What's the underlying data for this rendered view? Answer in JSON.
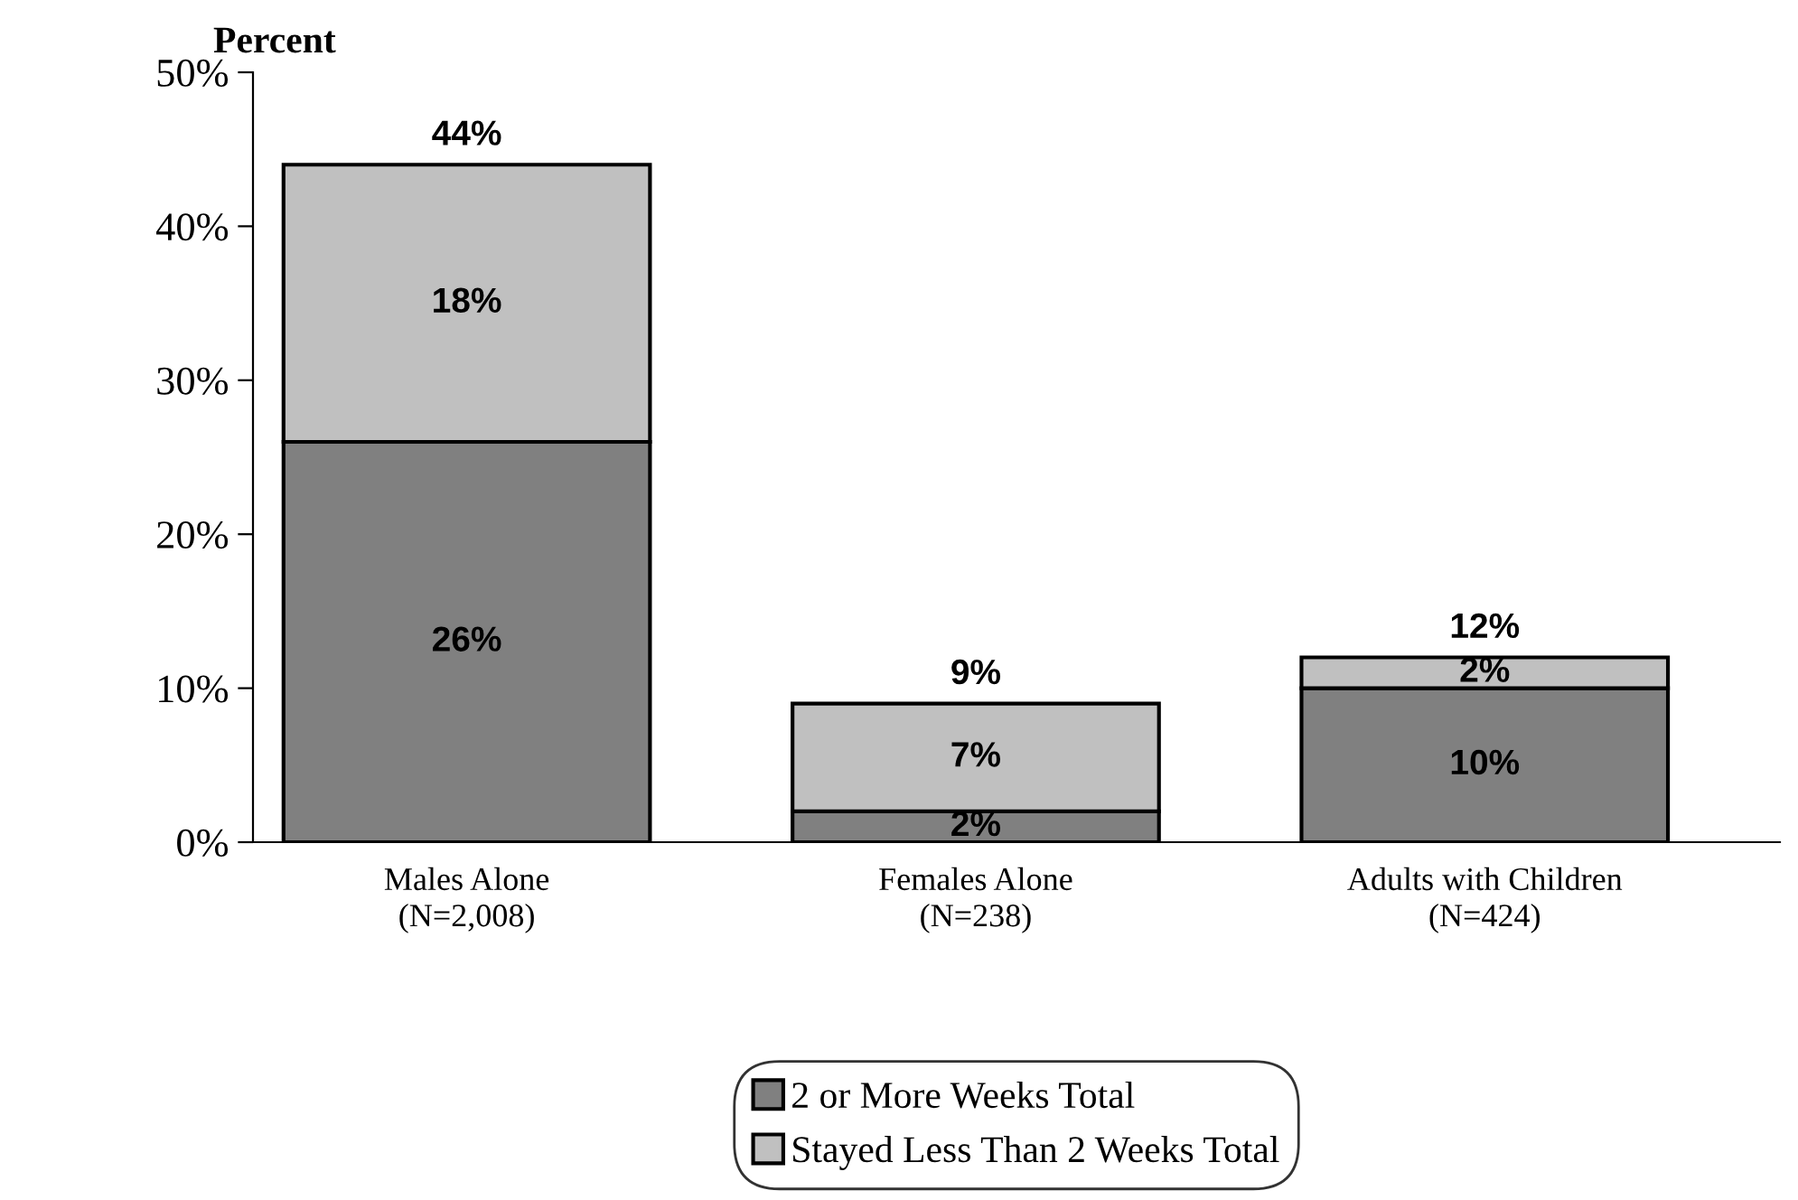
{
  "chart_data": {
    "type": "bar",
    "stacked": true,
    "ylabel": "Percent",
    "categories": [
      "Males Alone\n(N=2,008)",
      "Females Alone\n(N=238)",
      "Adults with Children\n(N=424)"
    ],
    "series": [
      {
        "name": "2 or More Weeks Total",
        "color": "#808080",
        "values": [
          26,
          2,
          10
        ],
        "value_labels": [
          "26%",
          "2%",
          "10%"
        ]
      },
      {
        "name": "Stayed Less Than 2 Weeks Total",
        "color": "#c0c0c0",
        "values": [
          18,
          7,
          2
        ],
        "value_labels": [
          "18%",
          "7%",
          "2%"
        ]
      }
    ],
    "totals": [
      "44%",
      "9%",
      "12%"
    ],
    "ylim": [
      0,
      50
    ],
    "yticks": [
      {
        "value": 0,
        "label": "0%"
      },
      {
        "value": 10,
        "label": "10%"
      },
      {
        "value": 20,
        "label": "20%"
      },
      {
        "value": 30,
        "label": "30%"
      },
      {
        "value": 40,
        "label": "40%"
      },
      {
        "value": 50,
        "label": "50%"
      }
    ],
    "grid": false,
    "legend": "bottom"
  }
}
